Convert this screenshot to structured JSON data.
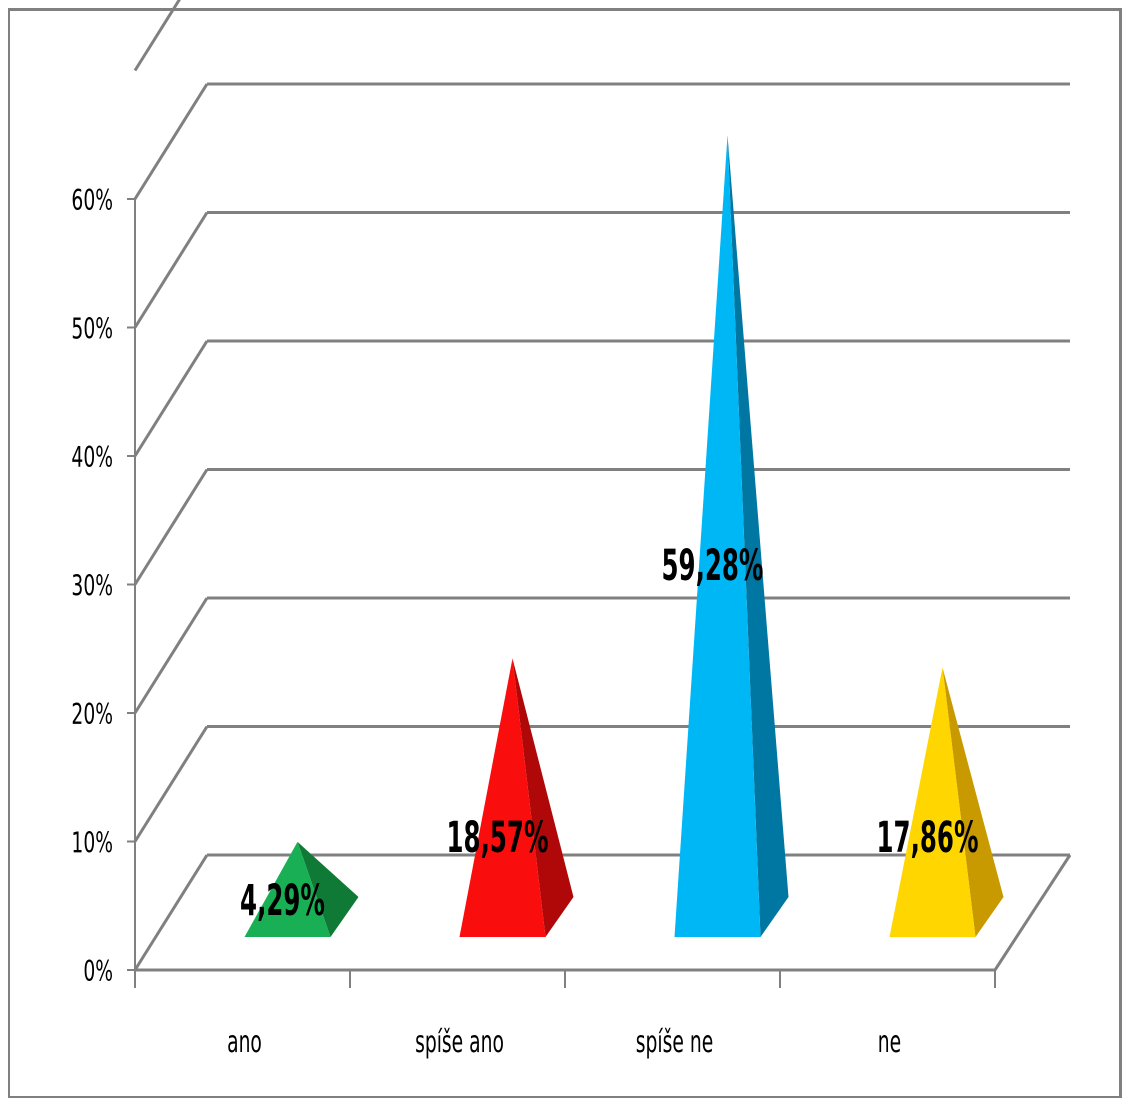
{
  "chart_data": {
    "type": "bar",
    "style": "3d-pyramid",
    "categories": [
      "ano",
      "spíše ano",
      "spíše ne",
      "ne"
    ],
    "values": [
      4.29,
      18.57,
      59.28,
      17.86
    ],
    "data_labels": [
      "4,29%",
      "18,57%",
      "59,28%",
      "17,86%"
    ],
    "ylim": [
      0,
      60
    ],
    "ytick_values": [
      0,
      10,
      20,
      30,
      40,
      50,
      60
    ],
    "ytick_labels": [
      "0%",
      "10%",
      "20%",
      "30%",
      "40%",
      "50%",
      "60%"
    ],
    "grid": true,
    "legend": false,
    "colors": [
      {
        "front": "#19b055",
        "side": "#0e7a35"
      },
      {
        "front": "#fa0d0d",
        "side": "#b00808"
      },
      {
        "front": "#00b7f5",
        "side": "#0077a3"
      },
      {
        "front": "#ffd600",
        "side": "#c99a00"
      }
    ]
  }
}
